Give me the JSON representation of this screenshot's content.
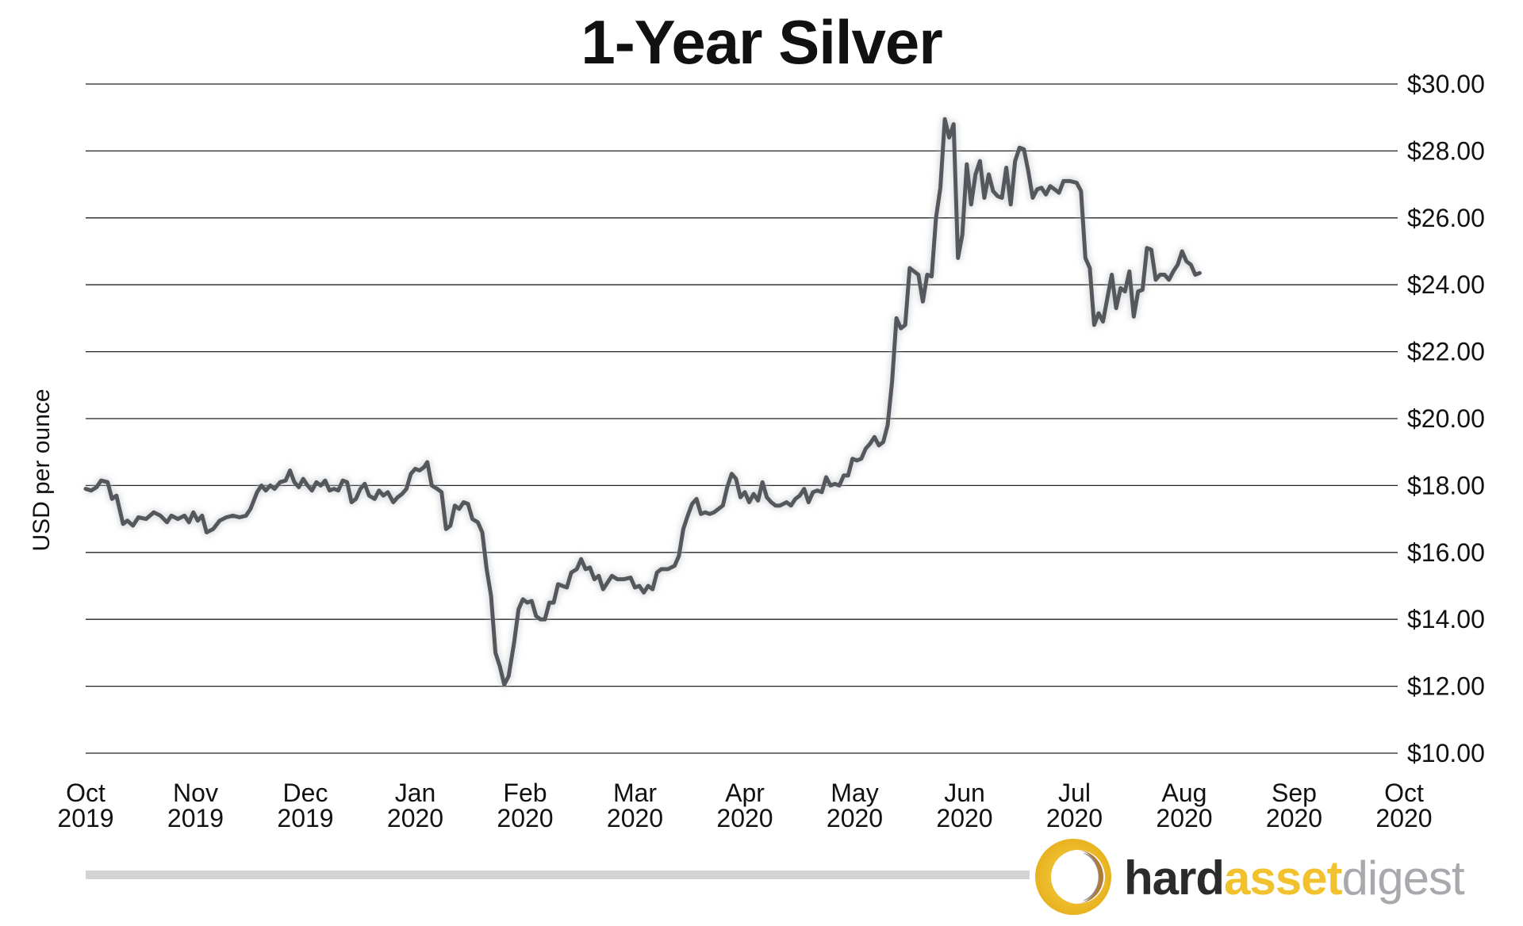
{
  "chart_data": {
    "type": "line",
    "title": "1-Year Silver",
    "ylabel": "USD per ounce",
    "xlabel": "",
    "ylim": [
      10,
      30
    ],
    "y_ticks": [
      10,
      12,
      14,
      16,
      18,
      20,
      22,
      24,
      26,
      28,
      30
    ],
    "y_tick_labels": [
      "$10.00",
      "$12.00",
      "$14.00",
      "$16.00",
      "$18.00",
      "$20.00",
      "$22.00",
      "$24.00",
      "$26.00",
      "$28.00",
      "$30.00"
    ],
    "x_ticks": [
      {
        "month": "Oct",
        "year": "2019"
      },
      {
        "month": "Nov",
        "year": "2019"
      },
      {
        "month": "Dec",
        "year": "2019"
      },
      {
        "month": "Jan",
        "year": "2020"
      },
      {
        "month": "Feb",
        "year": "2020"
      },
      {
        "month": "Mar",
        "year": "2020"
      },
      {
        "month": "Apr",
        "year": "2020"
      },
      {
        "month": "May",
        "year": "2020"
      },
      {
        "month": "Jun",
        "year": "2020"
      },
      {
        "month": "Jul",
        "year": "2020"
      },
      {
        "month": "Aug",
        "year": "2020"
      },
      {
        "month": "Sep",
        "year": "2020"
      },
      {
        "month": "Oct",
        "year": "2020"
      }
    ],
    "grid": true,
    "line_color": "#54585d",
    "series": [
      {
        "values": [
          [
            0.0,
            17.9
          ],
          [
            0.05,
            17.85
          ],
          [
            0.1,
            17.95
          ],
          [
            0.14,
            18.15
          ],
          [
            0.2,
            18.1
          ],
          [
            0.24,
            17.6
          ],
          [
            0.28,
            17.7
          ],
          [
            0.34,
            16.85
          ],
          [
            0.38,
            16.95
          ],
          [
            0.43,
            16.8
          ],
          [
            0.48,
            17.05
          ],
          [
            0.55,
            17.0
          ],
          [
            0.62,
            17.2
          ],
          [
            0.68,
            17.1
          ],
          [
            0.74,
            16.9
          ],
          [
            0.78,
            17.1
          ],
          [
            0.84,
            17.0
          ],
          [
            0.9,
            17.1
          ],
          [
            0.94,
            16.9
          ],
          [
            0.98,
            17.2
          ],
          [
            1.02,
            16.95
          ],
          [
            1.06,
            17.1
          ],
          [
            1.1,
            16.6
          ],
          [
            1.16,
            16.7
          ],
          [
            1.22,
            16.95
          ],
          [
            1.28,
            17.05
          ],
          [
            1.34,
            17.1
          ],
          [
            1.4,
            17.05
          ],
          [
            1.46,
            17.1
          ],
          [
            1.5,
            17.3
          ],
          [
            1.56,
            17.8
          ],
          [
            1.6,
            18.0
          ],
          [
            1.64,
            17.85
          ],
          [
            1.68,
            18.0
          ],
          [
            1.72,
            17.9
          ],
          [
            1.77,
            18.1
          ],
          [
            1.82,
            18.15
          ],
          [
            1.86,
            18.45
          ],
          [
            1.9,
            18.1
          ],
          [
            1.94,
            17.95
          ],
          [
            1.98,
            18.2
          ],
          [
            2.02,
            18.0
          ],
          [
            2.06,
            17.85
          ],
          [
            2.1,
            18.1
          ],
          [
            2.14,
            18.0
          ],
          [
            2.18,
            18.15
          ],
          [
            2.22,
            17.85
          ],
          [
            2.26,
            17.9
          ],
          [
            2.3,
            17.85
          ],
          [
            2.34,
            18.15
          ],
          [
            2.38,
            18.1
          ],
          [
            2.42,
            17.5
          ],
          [
            2.46,
            17.6
          ],
          [
            2.5,
            17.9
          ],
          [
            2.54,
            18.05
          ],
          [
            2.58,
            17.7
          ],
          [
            2.63,
            17.6
          ],
          [
            2.67,
            17.85
          ],
          [
            2.71,
            17.7
          ],
          [
            2.75,
            17.8
          ],
          [
            2.8,
            17.5
          ],
          [
            2.84,
            17.65
          ],
          [
            2.88,
            17.75
          ],
          [
            2.92,
            17.9
          ],
          [
            2.96,
            18.35
          ],
          [
            3.0,
            18.5
          ],
          [
            3.04,
            18.45
          ],
          [
            3.08,
            18.55
          ],
          [
            3.11,
            18.7
          ],
          [
            3.15,
            18.0
          ],
          [
            3.2,
            17.9
          ],
          [
            3.24,
            17.8
          ],
          [
            3.28,
            16.7
          ],
          [
            3.32,
            16.8
          ],
          [
            3.36,
            17.4
          ],
          [
            3.4,
            17.3
          ],
          [
            3.44,
            17.5
          ],
          [
            3.48,
            17.45
          ],
          [
            3.52,
            17.0
          ],
          [
            3.57,
            16.9
          ],
          [
            3.61,
            16.6
          ],
          [
            3.65,
            15.5
          ],
          [
            3.69,
            14.7
          ],
          [
            3.73,
            13.0
          ],
          [
            3.77,
            12.6
          ],
          [
            3.81,
            12.05
          ],
          [
            3.85,
            12.3
          ],
          [
            3.9,
            13.3
          ],
          [
            3.94,
            14.3
          ],
          [
            3.98,
            14.6
          ],
          [
            4.02,
            14.5
          ],
          [
            4.06,
            14.55
          ],
          [
            4.1,
            14.1
          ],
          [
            4.14,
            14.0
          ],
          [
            4.18,
            14.0
          ],
          [
            4.22,
            14.5
          ],
          [
            4.26,
            14.5
          ],
          [
            4.3,
            15.05
          ],
          [
            4.34,
            15.0
          ],
          [
            4.38,
            14.95
          ],
          [
            4.42,
            15.4
          ],
          [
            4.47,
            15.5
          ],
          [
            4.51,
            15.8
          ],
          [
            4.55,
            15.5
          ],
          [
            4.59,
            15.55
          ],
          [
            4.63,
            15.2
          ],
          [
            4.67,
            15.3
          ],
          [
            4.71,
            14.9
          ],
          [
            4.75,
            15.1
          ],
          [
            4.79,
            15.3
          ],
          [
            4.84,
            15.2
          ],
          [
            4.9,
            15.2
          ],
          [
            4.96,
            15.25
          ],
          [
            5.0,
            14.95
          ],
          [
            5.04,
            15.0
          ],
          [
            5.08,
            14.8
          ],
          [
            5.12,
            15.0
          ],
          [
            5.16,
            14.9
          ],
          [
            5.2,
            15.4
          ],
          [
            5.24,
            15.5
          ],
          [
            5.3,
            15.5
          ],
          [
            5.36,
            15.6
          ],
          [
            5.4,
            15.9
          ],
          [
            5.44,
            16.7
          ],
          [
            5.48,
            17.1
          ],
          [
            5.52,
            17.45
          ],
          [
            5.56,
            17.6
          ],
          [
            5.6,
            17.15
          ],
          [
            5.64,
            17.2
          ],
          [
            5.68,
            17.15
          ],
          [
            5.72,
            17.2
          ],
          [
            5.76,
            17.3
          ],
          [
            5.8,
            17.4
          ],
          [
            5.84,
            17.95
          ],
          [
            5.88,
            18.35
          ],
          [
            5.92,
            18.2
          ],
          [
            5.96,
            17.65
          ],
          [
            6.0,
            17.8
          ],
          [
            6.04,
            17.5
          ],
          [
            6.08,
            17.75
          ],
          [
            6.12,
            17.55
          ],
          [
            6.16,
            18.1
          ],
          [
            6.2,
            17.65
          ],
          [
            6.24,
            17.5
          ],
          [
            6.28,
            17.4
          ],
          [
            6.32,
            17.4
          ],
          [
            6.38,
            17.5
          ],
          [
            6.42,
            17.4
          ],
          [
            6.46,
            17.6
          ],
          [
            6.5,
            17.7
          ],
          [
            6.54,
            17.9
          ],
          [
            6.58,
            17.5
          ],
          [
            6.62,
            17.8
          ],
          [
            6.66,
            17.85
          ],
          [
            6.7,
            17.8
          ],
          [
            6.74,
            18.25
          ],
          [
            6.78,
            18.0
          ],
          [
            6.82,
            18.05
          ],
          [
            6.86,
            18.0
          ],
          [
            6.9,
            18.3
          ],
          [
            6.94,
            18.3
          ],
          [
            6.98,
            18.8
          ],
          [
            7.02,
            18.75
          ],
          [
            7.06,
            18.8
          ],
          [
            7.1,
            19.1
          ],
          [
            7.14,
            19.25
          ],
          [
            7.18,
            19.45
          ],
          [
            7.22,
            19.2
          ],
          [
            7.26,
            19.3
          ],
          [
            7.3,
            19.8
          ],
          [
            7.34,
            21.1
          ],
          [
            7.38,
            23.0
          ],
          [
            7.42,
            22.7
          ],
          [
            7.46,
            22.8
          ],
          [
            7.5,
            24.5
          ],
          [
            7.54,
            24.4
          ],
          [
            7.58,
            24.3
          ],
          [
            7.62,
            23.5
          ],
          [
            7.66,
            24.3
          ],
          [
            7.7,
            24.25
          ],
          [
            7.74,
            26.0
          ],
          [
            7.78,
            26.9
          ],
          [
            7.82,
            28.95
          ],
          [
            7.86,
            28.4
          ],
          [
            7.9,
            28.8
          ],
          [
            7.94,
            24.8
          ],
          [
            7.98,
            25.5
          ],
          [
            8.02,
            27.6
          ],
          [
            8.06,
            26.4
          ],
          [
            8.1,
            27.3
          ],
          [
            8.14,
            27.7
          ],
          [
            8.18,
            26.6
          ],
          [
            8.22,
            27.3
          ],
          [
            8.26,
            26.8
          ],
          [
            8.3,
            26.65
          ],
          [
            8.34,
            26.6
          ],
          [
            8.38,
            27.5
          ],
          [
            8.42,
            26.4
          ],
          [
            8.46,
            27.7
          ],
          [
            8.5,
            28.1
          ],
          [
            8.54,
            28.05
          ],
          [
            8.58,
            27.4
          ],
          [
            8.62,
            26.6
          ],
          [
            8.66,
            26.85
          ],
          [
            8.7,
            26.9
          ],
          [
            8.74,
            26.7
          ],
          [
            8.78,
            26.95
          ],
          [
            8.82,
            26.85
          ],
          [
            8.86,
            26.75
          ],
          [
            8.9,
            27.1
          ],
          [
            8.96,
            27.1
          ],
          [
            9.02,
            27.05
          ],
          [
            9.06,
            26.8
          ],
          [
            9.1,
            24.8
          ],
          [
            9.14,
            24.5
          ],
          [
            9.18,
            22.8
          ],
          [
            9.22,
            23.15
          ],
          [
            9.26,
            22.9
          ],
          [
            9.3,
            23.6
          ],
          [
            9.34,
            24.3
          ],
          [
            9.38,
            23.3
          ],
          [
            9.42,
            23.9
          ],
          [
            9.46,
            23.8
          ],
          [
            9.5,
            24.4
          ],
          [
            9.54,
            23.05
          ],
          [
            9.58,
            23.8
          ],
          [
            9.62,
            23.85
          ],
          [
            9.66,
            25.1
          ],
          [
            9.7,
            25.05
          ],
          [
            9.74,
            24.15
          ],
          [
            9.78,
            24.3
          ],
          [
            9.82,
            24.3
          ],
          [
            9.86,
            24.15
          ],
          [
            9.9,
            24.4
          ],
          [
            9.94,
            24.6
          ],
          [
            9.98,
            25.0
          ],
          [
            10.02,
            24.7
          ],
          [
            10.06,
            24.6
          ],
          [
            10.1,
            24.3
          ],
          [
            10.14,
            24.35
          ]
        ]
      }
    ]
  },
  "brand": {
    "part1": "hard",
    "part2": "asset",
    "part3": "digest",
    "color1": "#2b2b2b",
    "color2": "#f2c12e",
    "color3": "#a7a9ac"
  }
}
